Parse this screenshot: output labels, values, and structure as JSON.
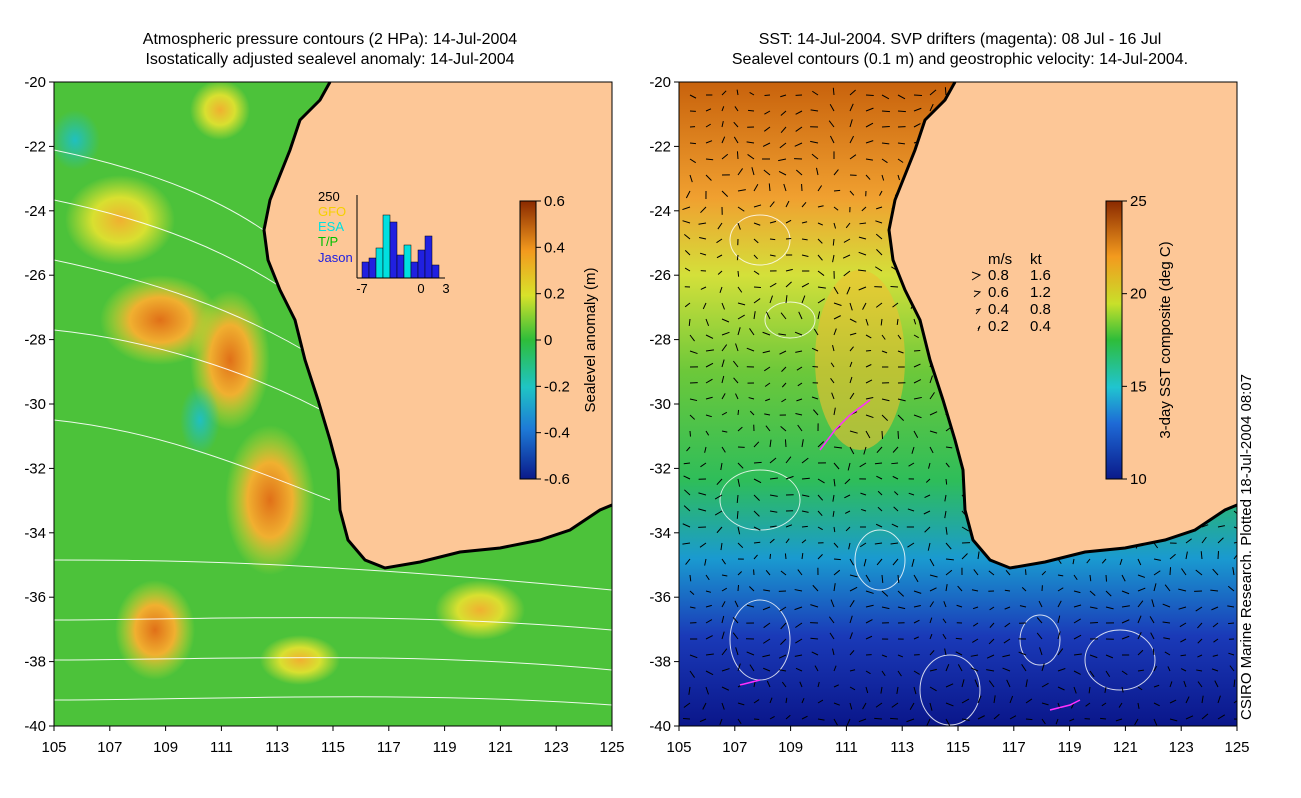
{
  "left_panel": {
    "title_line1": "Atmospheric pressure contours (2 HPa): 14-Jul-2004",
    "title_line2": "Isostatically adjusted sealevel anomaly: 14-Jul-2004",
    "colorbar_label": "Sealevel anomaly (m)",
    "colorbar_ticks": [
      "0.6",
      "0.4",
      "0.2",
      "0",
      "-0.2",
      "-0.4",
      "-0.6"
    ],
    "histogram": {
      "ymax_label": "250",
      "x_ticks": [
        "-7",
        "0",
        "3"
      ],
      "legend": [
        {
          "name": "GFO",
          "color": "#f5d000"
        },
        {
          "name": "ESA",
          "color": "#00e0e0"
        },
        {
          "name": "T/P",
          "color": "#00c000"
        },
        {
          "name": "Jason",
          "color": "#2020e0"
        }
      ]
    }
  },
  "right_panel": {
    "title_line1": "SST: 14-Jul-2004. SVP drifters (magenta): 08 Jul - 16 Jul",
    "title_line2": "Sealevel contours (0.1 m) and geostrophic velocity: 14-Jul-2004.",
    "colorbar_label": "3-day SST composite (deg C)",
    "colorbar_ticks": [
      "25",
      "20",
      "15",
      "10"
    ],
    "velocity_legend": {
      "header_ms": "m/s",
      "header_kt": "kt",
      "rows": [
        {
          "ms": "0.8",
          "kt": "1.6"
        },
        {
          "ms": "0.6",
          "kt": "1.2"
        },
        {
          "ms": "0.4",
          "kt": "0.8"
        },
        {
          "ms": "0.2",
          "kt": "0.4"
        }
      ]
    }
  },
  "axes": {
    "y_ticks": [
      "-20",
      "-22",
      "-24",
      "-26",
      "-28",
      "-30",
      "-32",
      "-34",
      "-36",
      "-38",
      "-40"
    ],
    "x_ticks": [
      "105",
      "107",
      "109",
      "111",
      "113",
      "115",
      "117",
      "119",
      "121",
      "123",
      "125"
    ]
  },
  "credit": "CSIRO Marine Research. Plotted 18-Jul-2004 08:07",
  "colors": {
    "land": "#fdc797",
    "ocean_anomaly_base": "#4cc23a",
    "sst_warm": "#b34a00",
    "sst_cold": "#0a1a9a"
  }
}
